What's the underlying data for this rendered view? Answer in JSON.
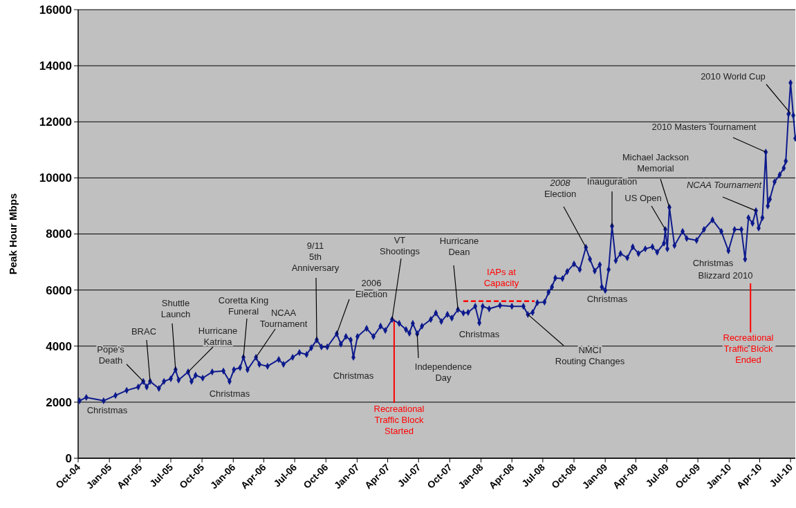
{
  "chart_data": {
    "type": "line",
    "ylabel": "Peak Hour Mbps",
    "grid": "y",
    "marker": "diamond",
    "xlim": [
      "2004-10-01",
      "2010-07-15"
    ],
    "ylim": [
      0,
      16000
    ],
    "yticks": [
      0,
      2000,
      4000,
      6000,
      8000,
      10000,
      12000,
      14000,
      16000
    ],
    "xticks": [
      {
        "value": "2004-10-01",
        "label": "Oct-04"
      },
      {
        "value": "2005-01-01",
        "label": "Jan-05"
      },
      {
        "value": "2005-04-01",
        "label": "Apr-05"
      },
      {
        "value": "2005-07-01",
        "label": "Jul-05"
      },
      {
        "value": "2005-10-01",
        "label": "Oct-05"
      },
      {
        "value": "2006-01-01",
        "label": "Jan-06"
      },
      {
        "value": "2006-04-01",
        "label": "Apr-06"
      },
      {
        "value": "2006-07-01",
        "label": "Jul-06"
      },
      {
        "value": "2006-10-01",
        "label": "Oct-06"
      },
      {
        "value": "2007-01-01",
        "label": "Jan-07"
      },
      {
        "value": "2007-04-01",
        "label": "Apr-07"
      },
      {
        "value": "2007-07-01",
        "label": "Jul-07"
      },
      {
        "value": "2007-10-01",
        "label": "Oct-07"
      },
      {
        "value": "2008-01-01",
        "label": "Jan-08"
      },
      {
        "value": "2008-04-01",
        "label": "Apr-08"
      },
      {
        "value": "2008-07-01",
        "label": "Jul-08"
      },
      {
        "value": "2008-10-01",
        "label": "Oct-08"
      },
      {
        "value": "2009-01-01",
        "label": "Jan-09"
      },
      {
        "value": "2009-04-01",
        "label": "Apr-09"
      },
      {
        "value": "2009-07-01",
        "label": "Jul-09"
      },
      {
        "value": "2009-10-01",
        "label": "Oct-09"
      },
      {
        "value": "2010-01-01",
        "label": "Jan-10"
      },
      {
        "value": "2010-04-01",
        "label": "Apr-10"
      },
      {
        "value": "2010-07-01",
        "label": "Jul-10"
      }
    ],
    "x": [
      "2004-10-05",
      "2004-10-25",
      "2004-12-15",
      "2005-01-19",
      "2005-02-21",
      "2005-03-27",
      "2005-04-11",
      "2005-04-21",
      "2005-05-01",
      "2005-05-27",
      "2005-06-11",
      "2005-07-01",
      "2005-07-15",
      "2005-07-24",
      "2005-08-21",
      "2005-08-31",
      "2005-09-12",
      "2005-10-03",
      "2005-10-31",
      "2005-12-03",
      "2005-12-21",
      "2006-01-03",
      "2006-01-21",
      "2006-01-31",
      "2006-02-12",
      "2006-03-09",
      "2006-03-19",
      "2006-04-12",
      "2006-05-15",
      "2006-05-29",
      "2006-06-25",
      "2006-07-15",
      "2006-08-05",
      "2006-08-19",
      "2006-09-04",
      "2006-09-18",
      "2006-10-05",
      "2006-11-02",
      "2006-11-14",
      "2006-11-29",
      "2006-12-13",
      "2006-12-21",
      "2007-01-02",
      "2007-01-29",
      "2007-02-18",
      "2007-03-11",
      "2007-03-25",
      "2007-04-14",
      "2007-05-05",
      "2007-05-25",
      "2007-06-04",
      "2007-06-14",
      "2007-06-27",
      "2007-07-11",
      "2007-08-06",
      "2007-08-21",
      "2007-09-06",
      "2007-09-24",
      "2007-10-07",
      "2007-10-25",
      "2007-11-10",
      "2007-11-24",
      "2007-12-15",
      "2007-12-27",
      "2008-01-06",
      "2008-01-25",
      "2008-02-26",
      "2008-04-01",
      "2008-05-05",
      "2008-05-18",
      "2008-06-01",
      "2008-06-15",
      "2008-07-06",
      "2008-07-18",
      "2008-07-28",
      "2008-08-07",
      "2008-08-28",
      "2008-09-11",
      "2008-10-01",
      "2008-10-18",
      "2008-11-05",
      "2008-11-17",
      "2008-12-01",
      "2008-12-16",
      "2008-12-22",
      "2009-01-01",
      "2009-01-11",
      "2009-01-21",
      "2009-02-01",
      "2009-02-15",
      "2009-03-07",
      "2009-03-23",
      "2009-04-09",
      "2009-04-29",
      "2009-05-20",
      "2009-06-03",
      "2009-06-23",
      "2009-06-27",
      "2009-07-03",
      "2009-07-09",
      "2009-07-24",
      "2009-08-17",
      "2009-08-29",
      "2009-09-27",
      "2009-10-19",
      "2009-11-13",
      "2009-12-09",
      "2009-12-30",
      "2010-01-17",
      "2010-02-06",
      "2010-02-17",
      "2010-02-27",
      "2010-03-11",
      "2010-03-21",
      "2010-03-29",
      "2010-04-09",
      "2010-04-19",
      "2010-04-25",
      "2010-05-01",
      "2010-05-15",
      "2010-05-30",
      "2010-06-11",
      "2010-06-17",
      "2010-06-25",
      "2010-07-01",
      "2010-07-09",
      "2010-07-15"
    ],
    "series": [
      {
        "color": "#0d1a8c",
        "values": [
          2050,
          2170,
          2050,
          2240,
          2420,
          2540,
          2740,
          2540,
          2740,
          2490,
          2740,
          2840,
          3160,
          2790,
          3080,
          2740,
          2960,
          2860,
          3080,
          3110,
          2740,
          3160,
          3230,
          3600,
          3160,
          3600,
          3350,
          3280,
          3520,
          3350,
          3600,
          3770,
          3700,
          3940,
          4220,
          3970,
          3970,
          4440,
          4070,
          4340,
          4220,
          3600,
          4340,
          4630,
          4340,
          4710,
          4560,
          4950,
          4810,
          4590,
          4460,
          4810,
          4440,
          4710,
          4950,
          5180,
          4880,
          5130,
          5000,
          5300,
          5180,
          5200,
          5420,
          4830,
          5420,
          5330,
          5450,
          5420,
          5420,
          5130,
          5200,
          5550,
          5570,
          5920,
          6110,
          6430,
          6410,
          6660,
          6930,
          6730,
          7520,
          7100,
          6680,
          6900,
          6110,
          5990,
          6730,
          8280,
          7050,
          7300,
          7150,
          7540,
          7300,
          7470,
          7540,
          7350,
          7670,
          8160,
          7470,
          8950,
          7590,
          8090,
          7840,
          7770,
          8160,
          8500,
          8090,
          7400,
          8160,
          8160,
          7100,
          8580,
          8380,
          8830,
          8210,
          8580,
          10920,
          9000,
          9240,
          9860,
          10110,
          10350,
          10600,
          12280,
          13390,
          12230,
          11410
        ]
      }
    ],
    "ref_lines": [
      {
        "axis": "x",
        "value": "2007-04-20",
        "label": "Recreational Traffic Block Started",
        "color": "#ff0000"
      },
      {
        "axis": "x",
        "value": "2010-03-05",
        "label": "Recreational Traffic Block Ended",
        "color": "#ff0000"
      },
      {
        "axis": "y",
        "value": 5600,
        "label": "IAPs at Capacity",
        "color": "#ff0000",
        "line_style": "dashed"
      }
    ],
    "annotations": [
      {
        "text": "Christmas",
        "x": "2004-12-15",
        "y": 2050
      },
      {
        "text": "Pope's Death",
        "x": "2005-04-11",
        "y": 2740
      },
      {
        "text": "BRAC",
        "x": "2005-05-01",
        "y": 2740
      },
      {
        "text": "Shuttle Launch",
        "x": "2005-07-15",
        "y": 3160
      },
      {
        "text": "Hurricane Katrina",
        "x": "2005-08-21",
        "y": 3080
      },
      {
        "text": "Christmas",
        "x": "2005-12-21",
        "y": 2740
      },
      {
        "text": "Coretta King Funeral",
        "x": "2006-01-31",
        "y": 3600
      },
      {
        "text": "NCAA Tournament",
        "x": "2006-03-09",
        "y": 3600
      },
      {
        "text": "9/11 5th Anniversary",
        "x": "2006-09-04",
        "y": 4220
      },
      {
        "text": "Christmas",
        "x": "2006-12-21",
        "y": 3600
      },
      {
        "text": "2006 Election",
        "x": "2006-11-02",
        "y": 4440
      },
      {
        "text": "VT Shootings",
        "x": "2007-04-14",
        "y": 4950
      },
      {
        "text": "Independence Day",
        "x": "2007-06-27",
        "y": 4440
      },
      {
        "text": "Hurricane Dean",
        "x": "2007-10-25",
        "y": 5300
      },
      {
        "text": "Christmas",
        "x": "2007-12-27",
        "y": 4830
      },
      {
        "text": "NMCI Routing Changes",
        "x": "2008-05-18",
        "y": 5130
      },
      {
        "text": "2008 Election",
        "x": "2008-11-05",
        "y": 7520
      },
      {
        "text": "Inauguration",
        "x": "2009-01-21",
        "y": 8280
      },
      {
        "text": "Christmas",
        "x": "2009-01-01",
        "y": 5990
      },
      {
        "text": "US Open",
        "x": "2009-06-27",
        "y": 8160
      },
      {
        "text": "Michael Jackson Memorial",
        "x": "2009-07-09",
        "y": 8950
      },
      {
        "text": "NCAA Tournament",
        "x": "2010-03-21",
        "y": 8830
      },
      {
        "text": "Christmas",
        "x": "2009-12-30",
        "y": 7400
      },
      {
        "text": "Blizzard 2010",
        "x": "2010-02-17",
        "y": 7100
      },
      {
        "text": "2010 Masters Tournament",
        "x": "2010-04-19",
        "y": 10920
      },
      {
        "text": "2010 World Cup",
        "x": "2010-07-01",
        "y": 12300
      }
    ]
  }
}
